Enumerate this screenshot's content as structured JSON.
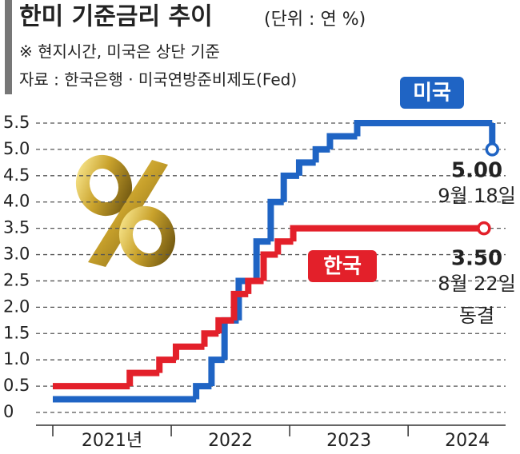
{
  "chart_data": {
    "type": "step",
    "title": "한미 기준금리 추이",
    "unit": "(단위 : 연 %)",
    "notes": [
      "※ 현지시간, 미국은 상단 기준",
      "자료 : 한국은행 · 미국연방준비제도(Fed)"
    ],
    "xlim": [
      2021,
      2024.85
    ],
    "xticks": [
      {
        "value": 2021,
        "label": "2021년"
      },
      2022,
      2023,
      2024
    ],
    "ylim": [
      0,
      5.5
    ],
    "yticks": [
      0,
      0.5,
      {
        "value": 1,
        "label": "1.0"
      },
      1.5,
      {
        "value": 2,
        "label": "2.0"
      },
      2.5,
      {
        "value": 3,
        "label": "3.0"
      },
      3.5,
      {
        "value": 4,
        "label": "4.0"
      },
      4.5,
      {
        "value": 5,
        "label": "5.0"
      },
      5.5
    ],
    "grid": true,
    "series": [
      {
        "name": "미국",
        "color": "#1f64c4",
        "x": [
          2021,
          2022.21,
          2022.34,
          2022.45,
          2022.57,
          2022.72,
          2022.84,
          2022.95,
          2023.08,
          2023.22,
          2023.34,
          2023.57,
          2024.71
        ],
        "values": [
          0.25,
          0.5,
          1,
          1.75,
          2.5,
          3.25,
          4,
          4.5,
          4.75,
          5,
          5.25,
          5.5,
          5
        ],
        "value_labels": [
          null,
          null,
          null,
          null,
          null,
          null,
          null,
          null,
          null,
          null,
          null,
          null,
          "5.00"
        ],
        "end_notes": [
          "9월 18일"
        ]
      },
      {
        "name": "한국",
        "color": "#e3202a",
        "x": [
          2021,
          2021.65,
          2021.9,
          2022.04,
          2022.28,
          2022.4,
          2022.53,
          2022.65,
          2022.78,
          2022.9,
          2023.03,
          2024.64
        ],
        "values": [
          0.5,
          0.75,
          1,
          1.25,
          1.5,
          1.75,
          2.25,
          2.5,
          3,
          3.25,
          3.5,
          3.5
        ],
        "value_labels": [
          null,
          null,
          null,
          null,
          null,
          null,
          null,
          null,
          null,
          null,
          null,
          "3.50"
        ],
        "end_notes": [
          "8월 22일",
          "동결"
        ]
      }
    ]
  }
}
